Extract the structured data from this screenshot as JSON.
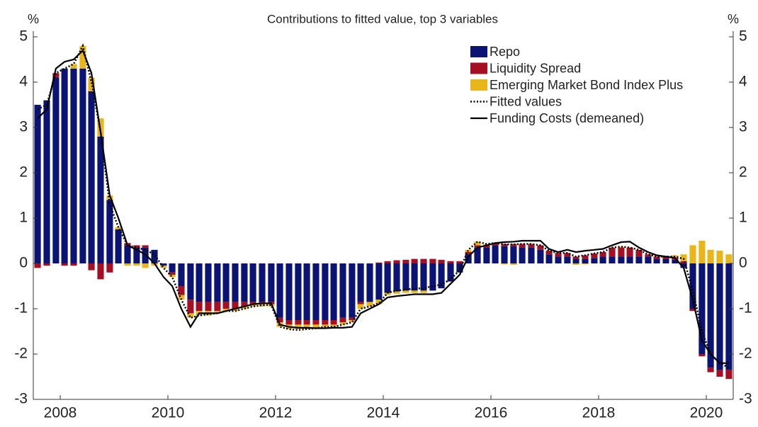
{
  "chart_data": {
    "type": "bar",
    "title": "Contributions to fitted value, top 3 variables",
    "y_label": "%",
    "y2_label": "%",
    "xlim": [
      2008,
      2021
    ],
    "xticks": [
      {
        "value": 2008.5,
        "label": "2008"
      },
      {
        "value": 2010.5,
        "label": "2010"
      },
      {
        "value": 2012.5,
        "label": "2012"
      },
      {
        "value": 2014.5,
        "label": "2014"
      },
      {
        "value": 2016.5,
        "label": "2016"
      },
      {
        "value": 2018.5,
        "label": "2018"
      },
      {
        "value": 2020.5,
        "label": "2020"
      }
    ],
    "ylim": [
      -3,
      5
    ],
    "yticks": [
      -3,
      -2,
      -1,
      0,
      1,
      2,
      3,
      4,
      5
    ],
    "y2lim": [
      -3,
      5
    ],
    "y2ticks": [
      -3,
      -2,
      -1,
      0,
      1,
      2,
      3,
      4,
      5
    ],
    "grid": false,
    "legend": "upper right",
    "x": [
      2008.08,
      2008.25,
      2008.42,
      2008.58,
      2008.75,
      2008.92,
      2009.08,
      2009.25,
      2009.42,
      2009.58,
      2009.75,
      2009.92,
      2010.08,
      2010.25,
      2010.42,
      2010.58,
      2010.75,
      2010.92,
      2011.08,
      2011.25,
      2011.42,
      2011.58,
      2011.75,
      2011.92,
      2012.08,
      2012.25,
      2012.42,
      2012.58,
      2012.75,
      2012.92,
      2013.08,
      2013.25,
      2013.42,
      2013.58,
      2013.75,
      2013.92,
      2014.08,
      2014.25,
      2014.42,
      2014.58,
      2014.75,
      2014.92,
      2015.08,
      2015.25,
      2015.42,
      2015.58,
      2015.75,
      2015.92,
      2016.08,
      2016.25,
      2016.42,
      2016.58,
      2016.75,
      2016.92,
      2017.08,
      2017.25,
      2017.42,
      2017.58,
      2017.75,
      2017.92,
      2018.08,
      2018.25,
      2018.42,
      2018.58,
      2018.75,
      2018.92,
      2019.08,
      2019.25,
      2019.42,
      2019.58,
      2019.75,
      2019.92,
      2020.08,
      2020.25,
      2020.42,
      2020.58,
      2020.75,
      2020.92
    ],
    "series": [
      {
        "name": "Repo",
        "type": "bar",
        "color": "#0b1473",
        "values": [
          3.5,
          3.6,
          4.1,
          4.3,
          4.3,
          4.3,
          3.8,
          2.8,
          1.4,
          0.75,
          0.4,
          0.35,
          0.35,
          0.3,
          -0.05,
          -0.2,
          -0.5,
          -0.8,
          -0.85,
          -0.85,
          -0.85,
          -0.85,
          -0.85,
          -0.85,
          -0.85,
          -0.85,
          -0.85,
          -1.2,
          -1.25,
          -1.25,
          -1.25,
          -1.25,
          -1.25,
          -1.25,
          -1.2,
          -1.2,
          -0.85,
          -0.85,
          -0.8,
          -0.65,
          -0.62,
          -0.6,
          -0.6,
          -0.6,
          -0.6,
          -0.55,
          -0.4,
          -0.2,
          0.2,
          0.35,
          0.35,
          0.4,
          0.38,
          0.38,
          0.35,
          0.35,
          0.3,
          0.2,
          0.15,
          0.15,
          0.1,
          0.1,
          0.12,
          0.15,
          0.15,
          0.15,
          0.15,
          0.15,
          0.15,
          0.1,
          0.1,
          0.08,
          -0.1,
          -1.0,
          -2.0,
          -2.3,
          -2.35,
          -2.35
        ]
      },
      {
        "name": "Liquidity Spread",
        "type": "bar",
        "color": "#a50f23",
        "values": [
          -0.1,
          -0.05,
          0.1,
          -0.05,
          -0.05,
          0,
          -0.15,
          -0.35,
          -0.2,
          0,
          0.05,
          0.05,
          0.05,
          0,
          0,
          -0.05,
          -0.2,
          -0.3,
          -0.2,
          -0.2,
          -0.2,
          -0.15,
          -0.15,
          -0.1,
          -0.05,
          -0.05,
          -0.05,
          -0.1,
          -0.1,
          -0.1,
          -0.1,
          -0.1,
          -0.1,
          -0.1,
          -0.1,
          -0.05,
          -0.05,
          0,
          0.02,
          0.05,
          0.07,
          0.08,
          0.1,
          0.1,
          0.1,
          0.08,
          0.05,
          0.05,
          0.05,
          0.05,
          0.05,
          0.05,
          0.05,
          0.05,
          0.08,
          0.08,
          0.1,
          0.08,
          0.08,
          0.08,
          0.05,
          0.08,
          0.1,
          0.1,
          0.2,
          0.2,
          0.2,
          0.15,
          0.05,
          0.05,
          0.05,
          0.05,
          0.05,
          -0.05,
          -0.05,
          -0.1,
          -0.15,
          -0.2
        ]
      },
      {
        "name": "Emerging Market Bond Index Plus",
        "type": "bar",
        "color": "#e8b51a",
        "values": [
          0,
          0,
          0,
          0,
          0.1,
          0.5,
          0.3,
          0.4,
          0.1,
          0.05,
          -0.05,
          -0.05,
          -0.1,
          -0.05,
          -0.05,
          -0.05,
          -0.1,
          -0.1,
          -0.1,
          -0.1,
          -0.05,
          -0.05,
          -0.05,
          -0.05,
          -0.05,
          -0.05,
          -0.05,
          -0.1,
          -0.1,
          -0.1,
          -0.1,
          -0.08,
          -0.05,
          -0.05,
          -0.05,
          -0.05,
          -0.1,
          -0.1,
          -0.1,
          -0.05,
          -0.05,
          -0.05,
          -0.05,
          -0.05,
          0,
          0,
          0,
          0,
          0.05,
          0.08,
          0.03,
          0,
          -0.02,
          -0.03,
          0,
          0,
          0,
          0,
          0,
          0,
          -0.03,
          -0.02,
          0,
          0,
          0,
          0.02,
          0,
          0,
          0,
          0,
          0,
          0.05,
          0.15,
          0.4,
          0.5,
          0.3,
          0.28,
          0.2
        ]
      },
      {
        "name": "Fitted values",
        "type": "line",
        "style": "dotted",
        "color": "#000000",
        "values": [
          3.4,
          3.5,
          4.2,
          4.3,
          4.4,
          4.8,
          4.0,
          2.9,
          1.3,
          0.8,
          0.4,
          0.35,
          0.3,
          0.2,
          -0.1,
          -0.3,
          -0.8,
          -1.2,
          -1.15,
          -1.12,
          -1.1,
          -1.05,
          -1.05,
          -1.0,
          -0.95,
          -0.92,
          -0.92,
          -1.4,
          -1.45,
          -1.47,
          -1.45,
          -1.43,
          -1.4,
          -1.4,
          -1.35,
          -1.3,
          -1.0,
          -0.95,
          -0.88,
          -0.65,
          -0.6,
          -0.58,
          -0.55,
          -0.55,
          -0.5,
          -0.47,
          -0.35,
          -0.15,
          0.3,
          0.48,
          0.43,
          0.45,
          0.42,
          0.42,
          0.43,
          0.43,
          0.4,
          0.28,
          0.23,
          0.23,
          0.15,
          0.18,
          0.22,
          0.25,
          0.35,
          0.37,
          0.35,
          0.3,
          0.2,
          0.15,
          0.15,
          0.15,
          0.1,
          -0.6,
          -1.5,
          -2.0,
          -2.2,
          -2.3
        ]
      },
      {
        "name": "Funding Costs (demeaned)",
        "type": "line",
        "style": "solid",
        "color": "#000000",
        "values": [
          3.2,
          3.4,
          4.3,
          4.45,
          4.5,
          4.7,
          4.2,
          2.9,
          1.5,
          1.0,
          0.4,
          0.3,
          0.2,
          0.0,
          -0.3,
          -0.5,
          -1.0,
          -1.4,
          -1.1,
          -1.1,
          -1.1,
          -1.05,
          -1.0,
          -0.95,
          -0.9,
          -0.88,
          -0.88,
          -1.35,
          -1.4,
          -1.42,
          -1.42,
          -1.43,
          -1.43,
          -1.42,
          -1.42,
          -1.4,
          -1.1,
          -1.0,
          -0.9,
          -0.75,
          -0.72,
          -0.7,
          -0.68,
          -0.68,
          -0.68,
          -0.65,
          -0.45,
          -0.25,
          0.15,
          0.35,
          0.4,
          0.45,
          0.47,
          0.48,
          0.5,
          0.5,
          0.5,
          0.32,
          0.25,
          0.3,
          0.25,
          0.28,
          0.3,
          0.32,
          0.4,
          0.47,
          0.48,
          0.35,
          0.25,
          0.18,
          0.15,
          0.12,
          -0.1,
          -0.8,
          -1.7,
          -2.0,
          -2.2,
          -2.2
        ]
      }
    ]
  }
}
